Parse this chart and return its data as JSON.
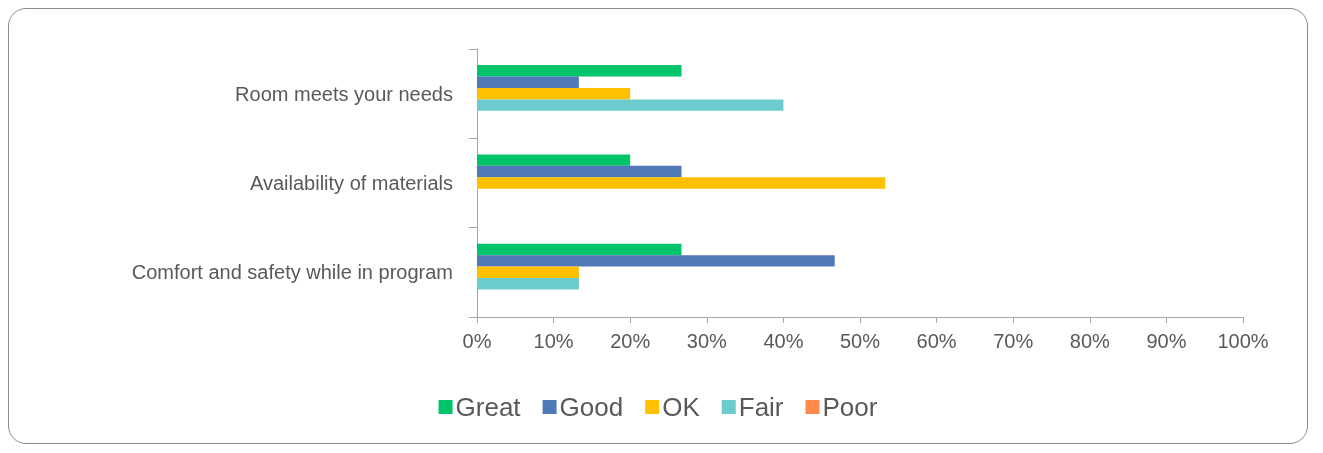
{
  "chart_data": {
    "type": "bar",
    "orientation": "horizontal",
    "categories": [
      "Room meets your needs",
      "Availability of materials",
      "Comfort and safety while in program"
    ],
    "series": [
      {
        "name": "Great",
        "color": "#00c46a",
        "values": [
          26.7,
          20,
          26.7
        ]
      },
      {
        "name": "Good",
        "color": "#4f79b8",
        "values": [
          13.3,
          26.7,
          46.7
        ]
      },
      {
        "name": "OK",
        "color": "#ffc000",
        "values": [
          20,
          53.3,
          13.3
        ]
      },
      {
        "name": "Fair",
        "color": "#6ccbcd",
        "values": [
          40,
          0,
          13.3
        ]
      },
      {
        "name": "Poor",
        "color": "#ff8a4c",
        "values": [
          0,
          0,
          0
        ]
      }
    ],
    "xlim": [
      0,
      100
    ],
    "xticks": [
      {
        "value": 0,
        "label": "0%"
      },
      {
        "value": 10,
        "label": "10%"
      },
      {
        "value": 20,
        "label": "20%"
      },
      {
        "value": 30,
        "label": "30%"
      },
      {
        "value": 40,
        "label": "40%"
      },
      {
        "value": 50,
        "label": "50%"
      },
      {
        "value": 60,
        "label": "60%"
      },
      {
        "value": 70,
        "label": "70%"
      },
      {
        "value": 80,
        "label": "80%"
      },
      {
        "value": 90,
        "label": "90%"
      },
      {
        "value": 100,
        "label": "100%"
      }
    ],
    "grid": false,
    "legend": "bottom"
  }
}
